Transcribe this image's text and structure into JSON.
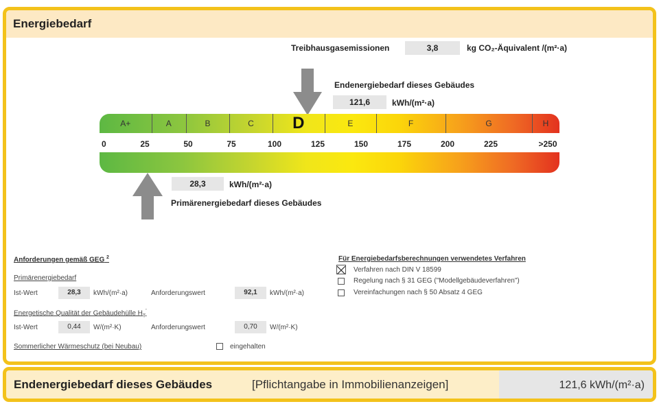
{
  "header": {
    "title": "Energiebedarf"
  },
  "emissions": {
    "label": "Treibhausgasemissionen",
    "value": "3,8",
    "unit": "kg CO₂-Äquivalent /(m²·a)"
  },
  "end_energy": {
    "label": "Endenergiebedarf dieses Gebäudes",
    "value": "121,6",
    "value_num": 121.6,
    "unit": "kWh/(m²·a)"
  },
  "primary_energy": {
    "label": "Primärenergiebedarf dieses Gebäudes",
    "value": "28,3",
    "value_num": 28.3,
    "unit": "kWh/(m²·a)"
  },
  "scale": {
    "classes": [
      {
        "label": "A+",
        "from": 0,
        "to": 30
      },
      {
        "label": "A",
        "from": 30,
        "to": 50
      },
      {
        "label": "B",
        "from": 50,
        "to": 75
      },
      {
        "label": "C",
        "from": 75,
        "to": 100
      },
      {
        "label": "D",
        "from": 100,
        "to": 130,
        "active": true
      },
      {
        "label": "E",
        "from": 130,
        "to": 160
      },
      {
        "label": "F",
        "from": 160,
        "to": 200
      },
      {
        "label": "G",
        "from": 200,
        "to": 250
      },
      {
        "label": "H",
        "from": 250,
        "to": 266
      }
    ],
    "ticks": [
      "0",
      "25",
      "50",
      "75",
      "100",
      "125",
      "150",
      "175",
      "200",
      "225",
      ">250"
    ],
    "colors": {
      "green": "#5db843",
      "yellow": "#fbe80f",
      "orange": "#f7a21b",
      "red": "#e3321f"
    }
  },
  "requirements": {
    "title": "Anforderungen gemäß GEG",
    "title_sup": "2",
    "primary": {
      "title": "Primärenergiebedarf",
      "ist_label": "Ist-Wert",
      "ist_value": "28,3",
      "unit": "kWh/(m²·a)",
      "req_label": "Anforderungswert",
      "req_value": "92,1"
    },
    "envelope": {
      "title": "Energetische Qualität der Gebäudehülle H",
      "title_sub": "T",
      "title_sup": "'",
      "ist_label": "Ist-Wert",
      "ist_value": "0,44",
      "unit": "W/(m²·K)",
      "req_label": "Anforderungswert",
      "req_value": "0,70"
    },
    "summer": {
      "title": "Sommerlicher Wärmeschutz (bei Neubau)",
      "check_label": "eingehalten",
      "checked": false
    }
  },
  "method": {
    "title": "Für Energiebedarfsberechnungen verwendetes Verfahren",
    "options": [
      {
        "label": "Verfahren nach DIN V 18599",
        "checked": true
      },
      {
        "label": "Regelung nach § 31 GEG (\"Modellgebäudeverfahren\")",
        "checked": false
      },
      {
        "label": "Vereinfachungen nach § 50 Absatz 4 GEG",
        "checked": false
      }
    ]
  },
  "footer": {
    "title": "Endenergiebedarf dieses Gebäudes",
    "note": "[Pflichtangabe in Immobilienanzeigen]",
    "value": "121,6 kWh/(m²·a)"
  },
  "colors": {
    "frame": "#f3c21b",
    "header_bg": "#fde9c4",
    "value_box": "#e6e6e6"
  }
}
